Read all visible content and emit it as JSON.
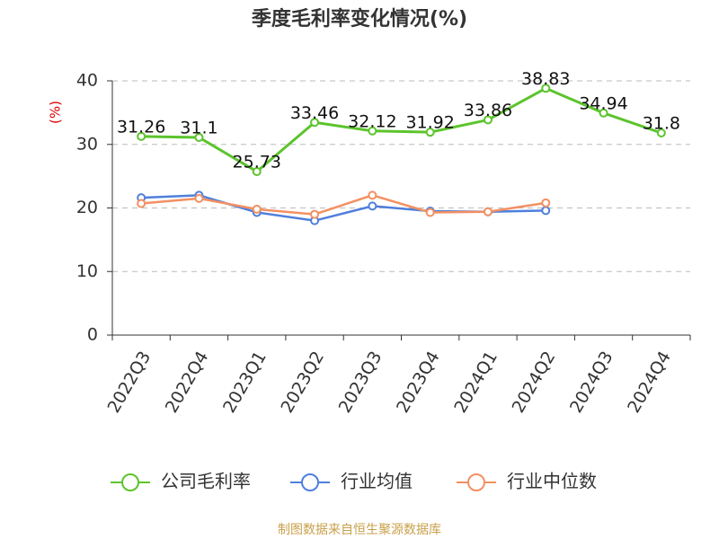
{
  "chart_data": {
    "type": "line",
    "title": "季度毛利率变化情况(%)",
    "y_label": "(%)",
    "categories": [
      "2022Q3",
      "2022Q4",
      "2023Q1",
      "2023Q2",
      "2023Q3",
      "2023Q4",
      "2024Q1",
      "2024Q2",
      "2024Q3",
      "2024Q4"
    ],
    "series": [
      {
        "name": "公司毛利率",
        "color": "#5cc42d",
        "labels": true,
        "values": [
          31.26,
          31.1,
          25.73,
          33.46,
          32.12,
          31.92,
          33.86,
          38.83,
          34.94,
          31.8
        ]
      },
      {
        "name": "行业均值",
        "color": "#4f7fdc",
        "labels": false,
        "values": [
          21.6,
          22.0,
          19.3,
          18.0,
          20.3,
          19.5,
          19.4,
          19.6,
          null,
          null
        ]
      },
      {
        "name": "行业中位数",
        "color": "#f39062",
        "labels": false,
        "values": [
          20.7,
          21.5,
          19.8,
          19.0,
          22.0,
          19.3,
          19.4,
          20.8,
          null,
          null
        ]
      }
    ],
    "ylim": [
      0,
      40
    ],
    "yticks": [
      0,
      10,
      20,
      30,
      40
    ],
    "grid": true,
    "source": "制图数据来自恒生聚源数据库"
  }
}
